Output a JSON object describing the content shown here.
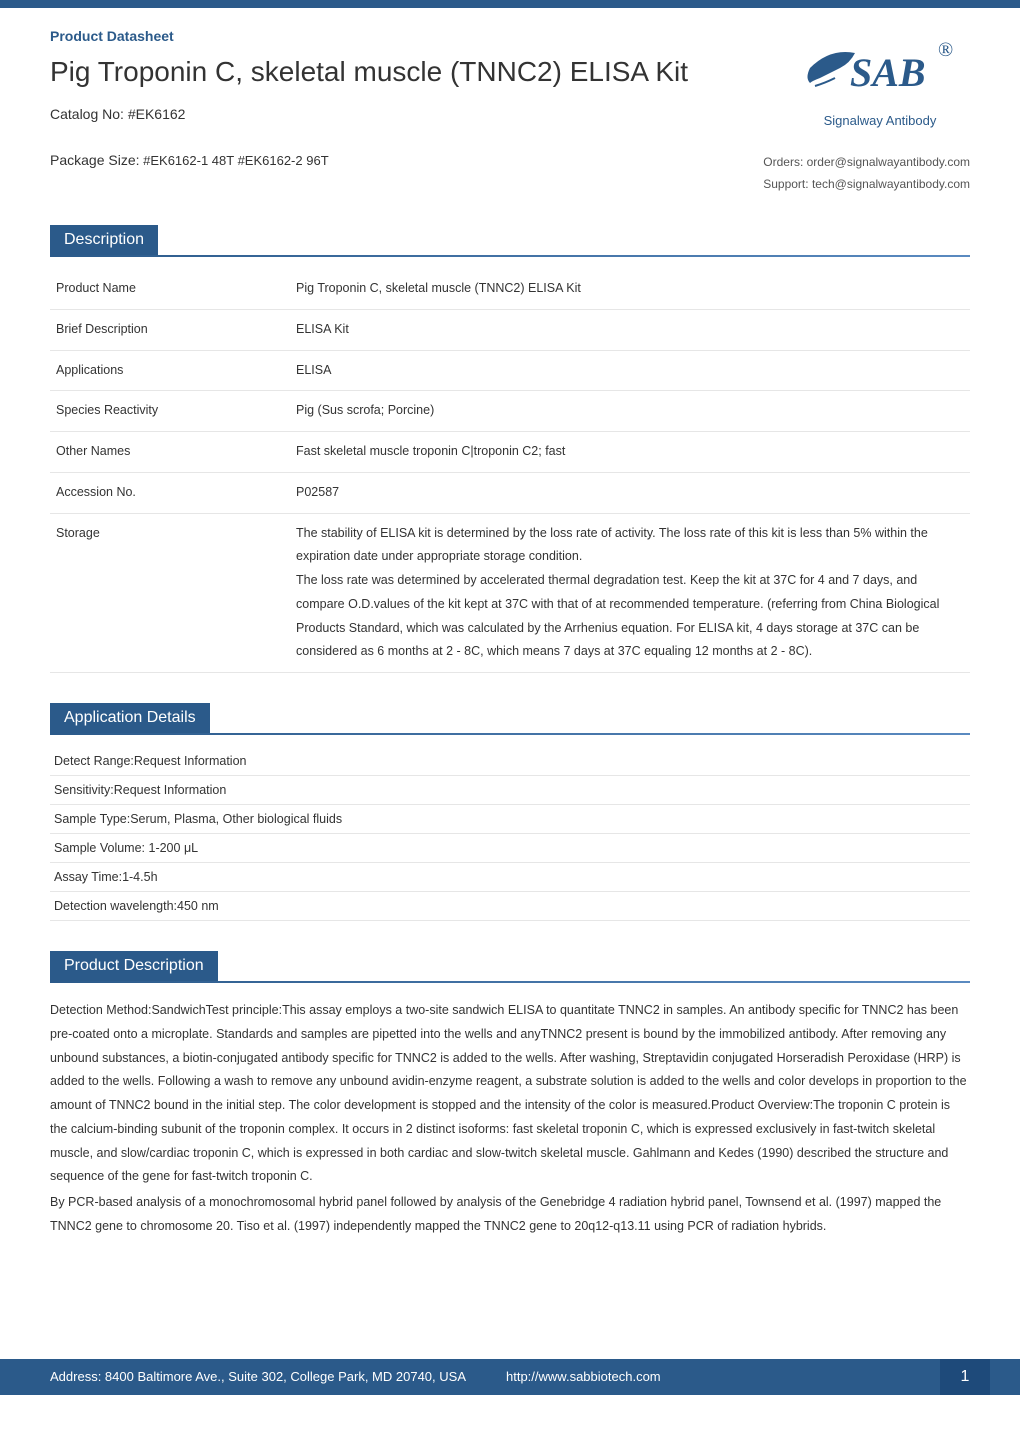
{
  "colors": {
    "primary": "#2b5a8a",
    "primary_dark": "#1e4a7a",
    "text": "#333333",
    "border": "#e6e6e6",
    "bg": "#ffffff"
  },
  "header": {
    "datasheet_label": "Product Datasheet",
    "product_title": "Pig Troponin C, skeletal muscle (TNNC2) ELISA Kit",
    "catalog_label": "Catalog No:",
    "catalog_no": "#EK6162",
    "package_label": "Package Size:",
    "package_sizes": "#EK6162-1 48T   #EK6162-2 96T",
    "logo_text": "SAB",
    "logo_reg": "®",
    "logo_tagline": "Signalway Antibody",
    "orders_label": "Orders:",
    "orders_email": "order@signalwayantibody.com",
    "support_label": "Support:",
    "support_email": "tech@signalwayantibody.com"
  },
  "description": {
    "section_title": "Description",
    "rows": [
      {
        "label": "Product Name",
        "value": "Pig Troponin C, skeletal muscle (TNNC2) ELISA Kit"
      },
      {
        "label": "Brief Description",
        "value": "ELISA Kit"
      },
      {
        "label": "Applications",
        "value": "ELISA"
      },
      {
        "label": "Species Reactivity",
        "value": "Pig (Sus scrofa; Porcine)"
      },
      {
        "label": "Other Names",
        "value": "Fast skeletal muscle troponin C|troponin C2; fast"
      },
      {
        "label": "Accession No.",
        "value": "P02587"
      },
      {
        "label": "Storage",
        "value": "The stability of ELISA kit is determined by the loss rate of activity. The loss rate of this kit is less than 5% within the expiration date under appropriate storage condition.\nThe loss rate was determined by accelerated thermal degradation test. Keep the kit at 37C for 4 and 7 days, and compare O.D.values of the kit kept at 37C with that of at recommended temperature. (referring from China Biological Products Standard, which was calculated by the Arrhenius equation. For ELISA kit, 4 days storage at 37C can be considered as 6 months at 2 - 8C, which means 7 days at 37C equaling 12 months at 2 - 8C)."
      }
    ]
  },
  "application_details": {
    "section_title": "Application Details",
    "items": [
      "Detect Range:Request Information",
      "Sensitivity:Request Information",
      "Sample Type:Serum, Plasma, Other biological fluids",
      "Sample Volume: 1-200 μL",
      "Assay Time:1-4.5h",
      "Detection wavelength:450 nm"
    ]
  },
  "product_description": {
    "section_title": "Product Description",
    "paragraphs": [
      "Detection Method:SandwichTest principle:This assay employs a two-site sandwich ELISA to quantitate TNNC2 in samples. An antibody specific for TNNC2 has been pre-coated onto a microplate. Standards and samples are pipetted into the wells and anyTNNC2 present is bound by the immobilized antibody. After removing any unbound substances, a biotin-conjugated antibody specific for TNNC2 is added to the wells. After washing, Streptavidin conjugated Horseradish Peroxidase (HRP) is added to the wells. Following a wash to remove any unbound avidin-enzyme reagent, a substrate solution is added to the wells and color develops in proportion to the amount of TNNC2 bound in the initial step. The color development is stopped and the intensity of the color is measured.Product Overview:The troponin C protein is the calcium-binding subunit of the troponin complex. It occurs in 2 distinct isoforms: fast skeletal troponin C, which is expressed exclusively in fast-twitch skeletal muscle, and slow/cardiac troponin C, which is expressed in both cardiac and slow-twitch skeletal muscle. Gahlmann and Kedes (1990) described the structure and sequence of the gene for fast-twitch troponin C.",
      "By PCR-based analysis of a monochromosomal hybrid panel followed by analysis of the Genebridge 4 radiation hybrid panel, Townsend et al. (1997) mapped the TNNC2 gene to chromosome 20. Tiso et al. (1997) independently mapped the TNNC2 gene to 20q12-q13.11 using PCR of radiation hybrids."
    ]
  },
  "footer": {
    "address": "Address: 8400 Baltimore Ave., Suite 302, College Park, MD 20740, USA",
    "url": "http://www.sabbiotech.com",
    "page": "1"
  }
}
